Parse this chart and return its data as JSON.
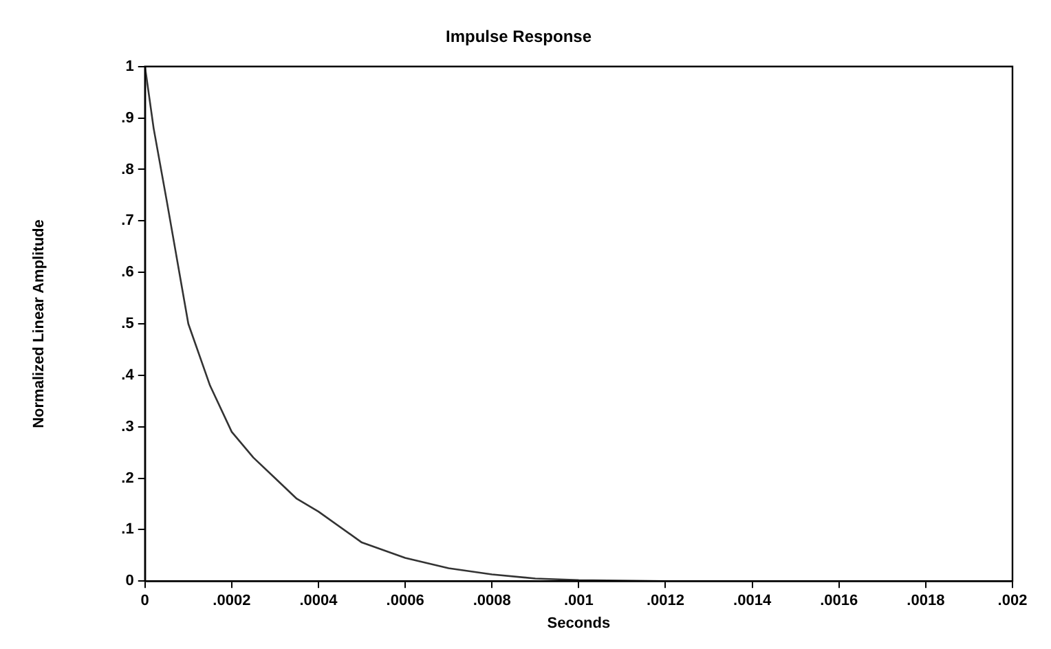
{
  "chart_data": {
    "type": "line",
    "title": "Impulse Response",
    "xlabel": "Seconds",
    "ylabel": "Normalized Linear Amplitude",
    "x": [
      0,
      2e-05,
      5e-05,
      0.0001,
      0.00015,
      0.0002,
      0.00025,
      0.0003,
      0.00035,
      0.0004,
      0.0005,
      0.0006,
      0.0007,
      0.0008,
      0.0009,
      0.001,
      0.0012,
      0.0014,
      0.0016,
      0.0018,
      0.002
    ],
    "series": [
      {
        "color": "#333333",
        "values": [
          1,
          0.88,
          0.74,
          0.5,
          0.38,
          0.29,
          0.24,
          0.2,
          0.16,
          0.135,
          0.075,
          0.045,
          0.025,
          0.013,
          0.005,
          0.002,
          0,
          0,
          0,
          0,
          0
        ]
      }
    ],
    "xlim": [
      0,
      0.002
    ],
    "ylim": [
      0,
      1
    ],
    "xticks": [
      0,
      {
        "value": 0.0002,
        "label": ".0002"
      },
      {
        "value": 0.0004,
        "label": ".0004"
      },
      {
        "value": 0.0006,
        "label": ".0006"
      },
      {
        "value": 0.0008,
        "label": ".0008"
      },
      {
        "value": 0.001,
        "label": ".001"
      },
      {
        "value": 0.0012,
        "label": ".0012"
      },
      {
        "value": 0.0014,
        "label": ".0014"
      },
      {
        "value": 0.0016,
        "label": ".0016"
      },
      {
        "value": 0.0018,
        "label": ".0018"
      },
      {
        "value": 0.002,
        "label": ".002"
      }
    ],
    "yticks": [
      0,
      {
        "value": 0.1,
        "label": ".1"
      },
      {
        "value": 0.2,
        "label": ".2"
      },
      {
        "value": 0.3,
        "label": ".3"
      },
      {
        "value": 0.4,
        "label": ".4"
      },
      {
        "value": 0.5,
        "label": ".5"
      },
      {
        "value": 0.6,
        "label": ".6"
      },
      {
        "value": 0.7,
        "label": ".7"
      },
      {
        "value": 0.8,
        "label": ".8"
      },
      {
        "value": 0.9,
        "label": ".9"
      },
      1
    ],
    "grid": false,
    "legend": false,
    "marker": "none",
    "line_style": "solid"
  }
}
